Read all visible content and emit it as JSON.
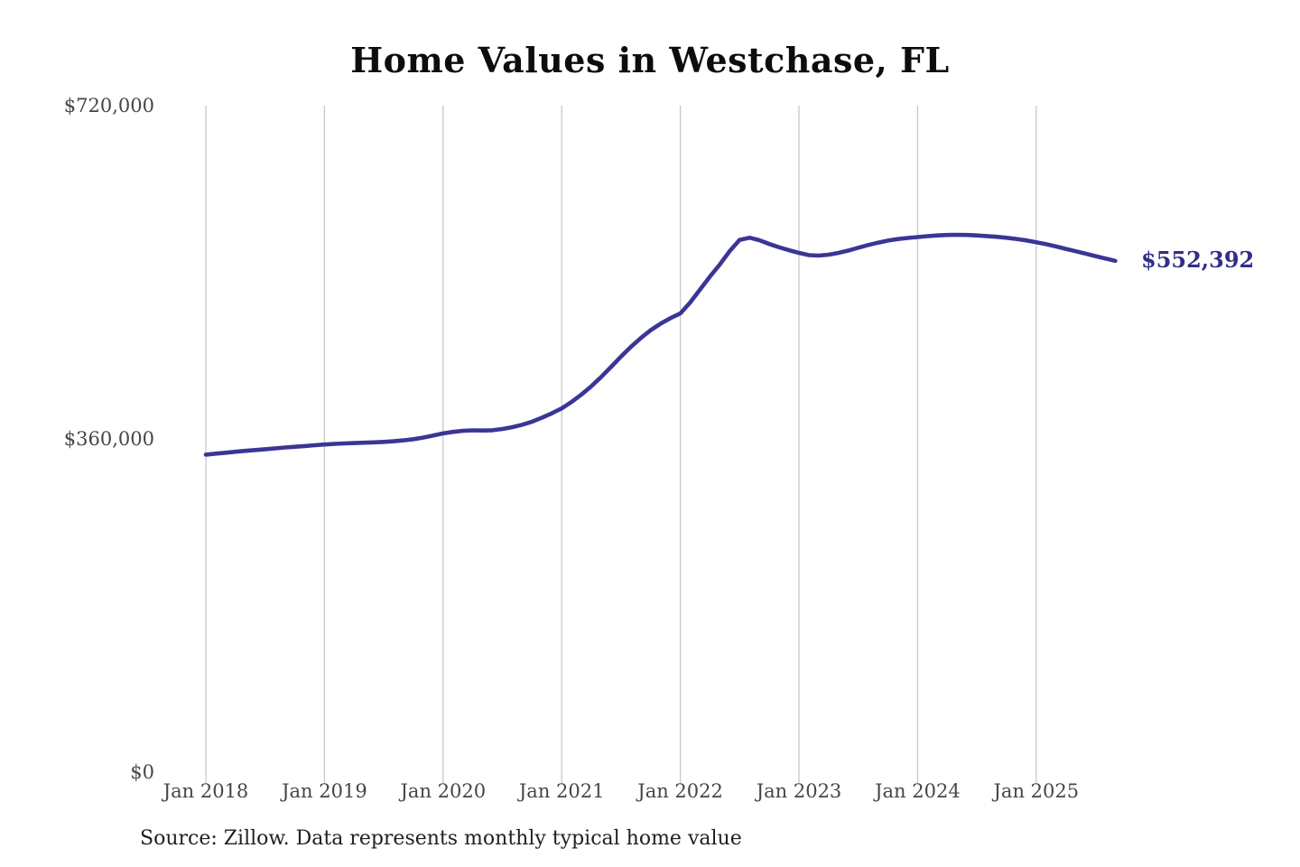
{
  "title": "Home Values in Westchase, FL",
  "end_label": "$552,392",
  "source": "Source: Zillow. Data represents monthly typical home value",
  "colors": {
    "line": "#3b3596",
    "end_label_text": "#332e87",
    "gridline": "#c9c9c9",
    "tick_text": "#464646",
    "title_text": "#0d0d0d",
    "source_text": "#1f1f1f"
  },
  "chart_data": {
    "type": "line",
    "title": "Home Values in Westchase, FL",
    "ylabel": "",
    "xlabel": "",
    "ylim": [
      0,
      720000
    ],
    "grid": "vertical-only",
    "legend": "none",
    "y_ticks": [
      {
        "label": "$0",
        "value": 0
      },
      {
        "label": "$360,000",
        "value": 360000
      },
      {
        "label": "$720,000",
        "value": 720000
      }
    ],
    "x_ticks": [
      {
        "label": "Jan 2018",
        "month_index": 0
      },
      {
        "label": "Jan 2019",
        "month_index": 12
      },
      {
        "label": "Jan 2020",
        "month_index": 24
      },
      {
        "label": "Jan 2021",
        "month_index": 36
      },
      {
        "label": "Jan 2022",
        "month_index": 48
      },
      {
        "label": "Jan 2023",
        "month_index": 60
      },
      {
        "label": "Jan 2024",
        "month_index": 72
      },
      {
        "label": "Jan 2025",
        "month_index": 84
      }
    ],
    "series": [
      {
        "name": "Monthly typical home value",
        "start_month": "Jan 2018",
        "end_month": "Sep 2025",
        "values": [
          343000,
          344100,
          345100,
          346100,
          347100,
          348000,
          348900,
          349800,
          350700,
          351500,
          352300,
          353200,
          354000,
          354600,
          355100,
          355500,
          355900,
          356300,
          356800,
          357500,
          358400,
          359700,
          361500,
          363700,
          366000,
          367600,
          368800,
          369300,
          369100,
          369400,
          370700,
          372700,
          375300,
          378600,
          382900,
          387700,
          393000,
          400000,
          408000,
          417000,
          427000,
          438000,
          449000,
          459500,
          469000,
          477500,
          484500,
          490500,
          495500,
          507500,
          521500,
          535500,
          548500,
          563000,
          575000,
          577400,
          574600,
          570500,
          567000,
          563800,
          561000,
          558500,
          558000,
          559000,
          561000,
          563500,
          566500,
          569500,
          572000,
          574200,
          575900,
          577100,
          578000,
          579000,
          579800,
          580300,
          580500,
          580300,
          579800,
          579100,
          578300,
          577300,
          576000,
          574400,
          572500,
          570300,
          567900,
          565300,
          562700,
          560100,
          557500,
          554900,
          552392
        ]
      }
    ],
    "end_value": 552392,
    "end_value_label": "$552,392"
  }
}
